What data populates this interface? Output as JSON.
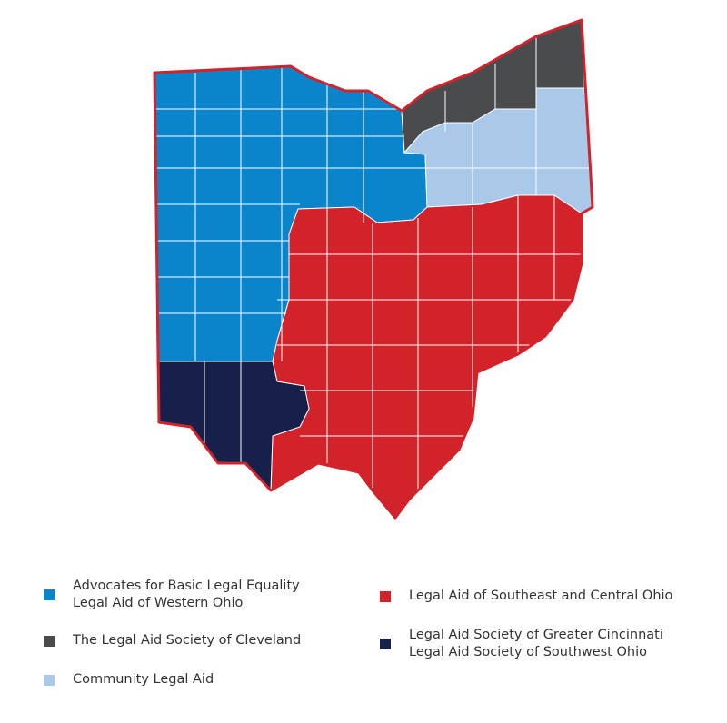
{
  "map": {
    "border_color": "#d2232a",
    "county_line_color": "#ffffff"
  },
  "regions": [
    {
      "id": "western",
      "color": "#0a85cc",
      "lines": [
        "Advocates for Basic Legal Equality",
        "Legal Aid of Western Ohio"
      ]
    },
    {
      "id": "cleveland",
      "color": "#4a4b4d",
      "lines": [
        "The Legal Aid Society of Cleveland"
      ]
    },
    {
      "id": "community",
      "color": "#aac8e8",
      "lines": [
        "Community Legal Aid"
      ]
    },
    {
      "id": "southeast",
      "color": "#d2232a",
      "lines": [
        "Legal Aid of Southeast and Central Ohio"
      ]
    },
    {
      "id": "cincinnati",
      "color": "#17204a",
      "lines": [
        "Legal Aid Society of Greater Cincinnati",
        "Legal Aid Society of Southwest Ohio"
      ]
    }
  ]
}
